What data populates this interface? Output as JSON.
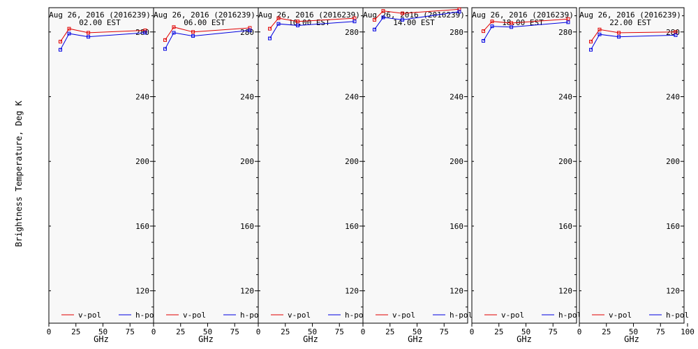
{
  "figure": {
    "ylabel": "Brightness Temperature, Deg K",
    "xlabel": "GHz",
    "colors": {
      "v-pol": "#e00000",
      "h-pol": "#0000e0",
      "frame": "#000000",
      "background": "#f8f8f8"
    }
  },
  "chart_data": [
    {
      "type": "line",
      "title": "Aug 26, 2016 (2016239)",
      "subtitle": "02.00 EST",
      "xlabel": "GHz",
      "ylabel": "Brightness Temperature, Deg K",
      "xlim": [
        0,
        100
      ],
      "ylim": [
        100,
        295
      ],
      "xticks": [
        0,
        25,
        50,
        75
      ],
      "yticks": [
        120,
        160,
        200,
        240,
        280
      ],
      "legend": "bottom",
      "x": [
        10.65,
        18.7,
        36.5,
        89
      ],
      "series": [
        {
          "name": "v-pol",
          "values": [
            274,
            282,
            279.5,
            281
          ]
        },
        {
          "name": "h-pol",
          "values": [
            269,
            279,
            277,
            279.5
          ]
        }
      ]
    },
    {
      "type": "line",
      "title": "Aug 26, 2016 (2016239)",
      "subtitle": "06.00 EST",
      "xlabel": "GHz",
      "ylabel": "",
      "xlim": [
        0,
        100
      ],
      "ylim": [
        100,
        295
      ],
      "xticks": [
        0,
        25,
        50,
        75
      ],
      "yticks": [
        120,
        160,
        200,
        240,
        280
      ],
      "legend": "bottom",
      "x": [
        10.65,
        18.7,
        36.5,
        89
      ],
      "series": [
        {
          "name": "v-pol",
          "values": [
            275,
            283,
            280,
            282.5
          ]
        },
        {
          "name": "h-pol",
          "values": [
            269.5,
            279.5,
            277.5,
            281
          ]
        }
      ]
    },
    {
      "type": "line",
      "title": "Aug 26, 2016 (2016239)",
      "subtitle": "10.00 EST",
      "xlabel": "GHz",
      "ylabel": "",
      "xlim": [
        0,
        100
      ],
      "ylim": [
        100,
        295
      ],
      "xticks": [
        0,
        25,
        50,
        75
      ],
      "yticks": [
        120,
        160,
        200,
        240,
        280
      ],
      "legend": "bottom",
      "x": [
        10.65,
        18.7,
        36.5,
        89
      ],
      "series": [
        {
          "name": "v-pol",
          "values": [
            282,
            288.5,
            286.5,
            288.5
          ]
        },
        {
          "name": "h-pol",
          "values": [
            276,
            285,
            284,
            286.5
          ]
        }
      ]
    },
    {
      "type": "line",
      "title": "Aug 26, 2016 (2016239)",
      "subtitle": "14.00 EST",
      "xlabel": "GHz",
      "ylabel": "",
      "xlim": [
        0,
        100
      ],
      "ylim": [
        100,
        295
      ],
      "xticks": [
        0,
        25,
        50,
        75
      ],
      "yticks": [
        120,
        160,
        200,
        240,
        280
      ],
      "legend": "bottom",
      "x": [
        10.65,
        18.7,
        36.5,
        89
      ],
      "series": [
        {
          "name": "v-pol",
          "values": [
            287.5,
            293,
            291.5,
            294
          ]
        },
        {
          "name": "h-pol",
          "values": [
            281.5,
            289,
            287.5,
            292.5
          ]
        }
      ]
    },
    {
      "type": "line",
      "title": "Aug 26, 2016 (2016239)",
      "subtitle": "18.00 EST",
      "xlabel": "GHz",
      "ylabel": "",
      "xlim": [
        0,
        100
      ],
      "ylim": [
        100,
        295
      ],
      "xticks": [
        0,
        25,
        50,
        75
      ],
      "yticks": [
        120,
        160,
        200,
        240,
        280
      ],
      "legend": "bottom",
      "x": [
        10.65,
        18.7,
        36.5,
        89
      ],
      "series": [
        {
          "name": "v-pol",
          "values": [
            280.5,
            286.5,
            285.5,
            288
          ]
        },
        {
          "name": "h-pol",
          "values": [
            274.5,
            283.5,
            283,
            286
          ]
        }
      ]
    },
    {
      "type": "line",
      "title": "Aug 26, 2016 (2016239)",
      "subtitle": "22.00 EST",
      "xlabel": "GHz",
      "ylabel": "",
      "xlim": [
        0,
        100
      ],
      "ylim": [
        100,
        295
      ],
      "xticks": [
        0,
        25,
        50,
        75
      ],
      "yticks": [
        120,
        160,
        200,
        240,
        280
      ],
      "legend": "bottom",
      "x": [
        10.65,
        18.7,
        36.5,
        89
      ],
      "series": [
        {
          "name": "v-pol",
          "values": [
            274,
            281.5,
            279.5,
            280
          ]
        },
        {
          "name": "h-pol",
          "values": [
            269,
            278.5,
            277,
            278
          ]
        }
      ]
    }
  ]
}
